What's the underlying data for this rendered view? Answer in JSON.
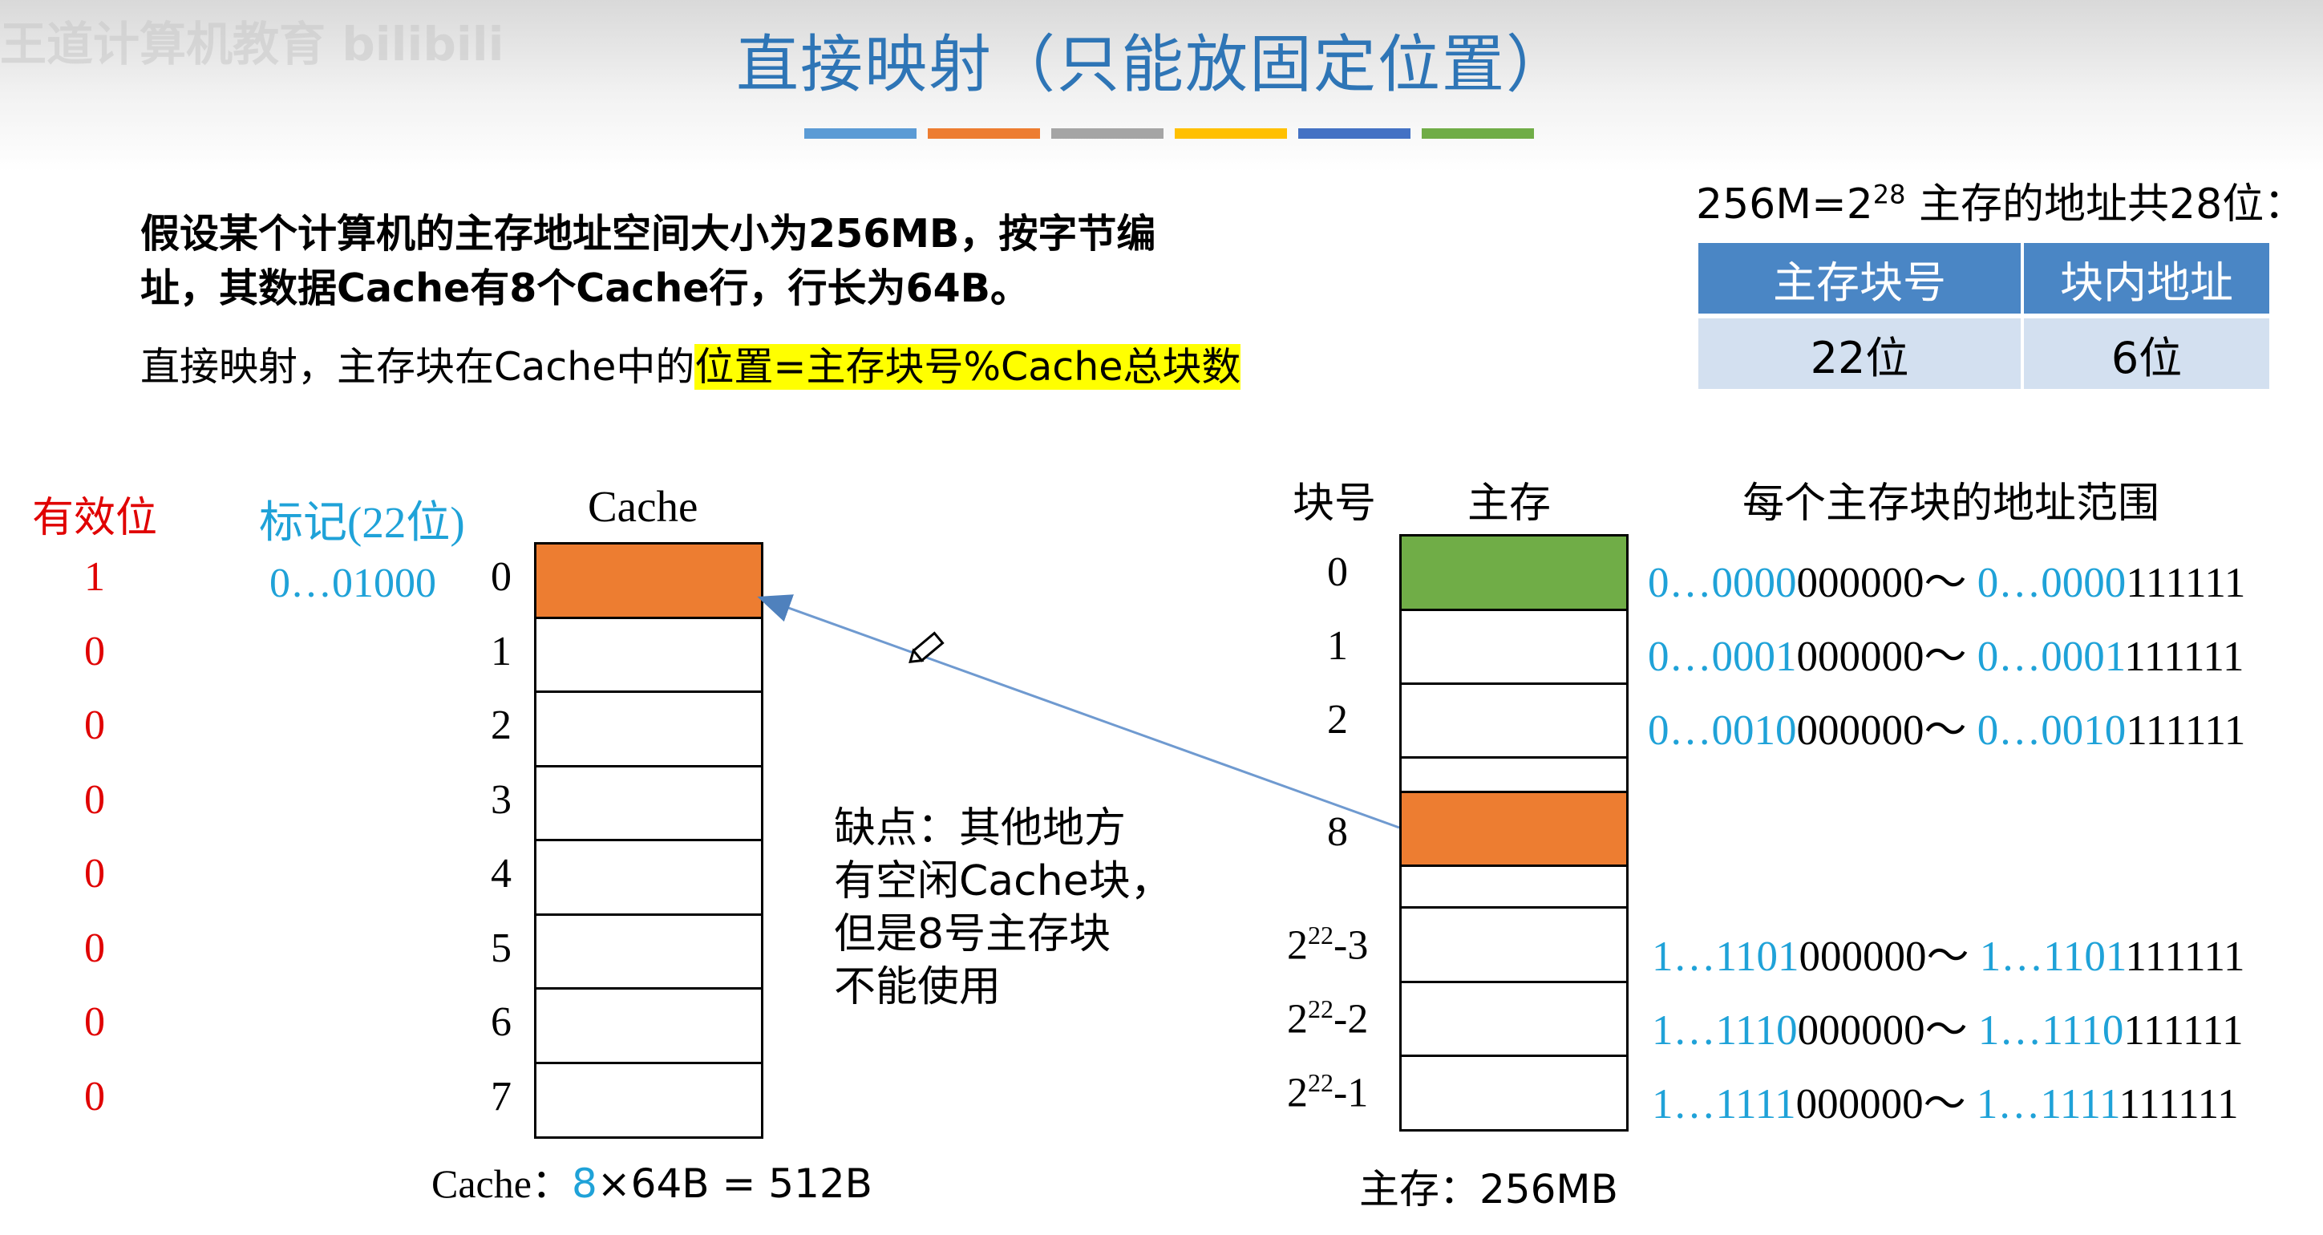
{
  "watermark": "王道计算机教育 bilibili",
  "title": "直接映射（只能放固定位置）",
  "colors": [
    "#5b9bd5",
    "#ed7d31",
    "#a5a5a5",
    "#ffc000",
    "#4472c4",
    "#70ad47"
  ],
  "intro": {
    "line1": "假设某个计算机的主存地址空间大小为256MB，按字节编",
    "line2": "址，其数据Cache有8个Cache行，行长为64B。",
    "line3_plain": "直接映射，主存块在Cache中的",
    "line3_highlight": "位置=主存块号%Cache总块数"
  },
  "address_info": {
    "base": "256M=2",
    "exp": "28",
    "rest": " 主存的地址共28位：",
    "headers": [
      "主存块号",
      "块内地址"
    ],
    "values": [
      "22位",
      "6位"
    ]
  },
  "cache": {
    "valid_header": "有效位",
    "tag_header": "标记(22位)",
    "title": "Cache",
    "rows": [
      {
        "index": "0",
        "valid": "1",
        "tag": "0…01000",
        "filled": true
      },
      {
        "index": "1",
        "valid": "0",
        "tag": "",
        "filled": false
      },
      {
        "index": "2",
        "valid": "0",
        "tag": "",
        "filled": false
      },
      {
        "index": "3",
        "valid": "0",
        "tag": "",
        "filled": false
      },
      {
        "index": "4",
        "valid": "0",
        "tag": "",
        "filled": false
      },
      {
        "index": "5",
        "valid": "0",
        "tag": "",
        "filled": false
      },
      {
        "index": "6",
        "valid": "0",
        "tag": "",
        "filled": false
      },
      {
        "index": "7",
        "valid": "0",
        "tag": "",
        "filled": false
      }
    ],
    "caption_prefix": "Cache：",
    "caption_num": "8",
    "caption_rest": "×64B = 512B"
  },
  "note": {
    "line1": "缺点：其他地方",
    "line2": "有空闲Cache块，",
    "line3": "但是8号主存块",
    "line4": "不能使用"
  },
  "memory": {
    "block_header": "块号",
    "title": "主存",
    "range_header": "每个主存块的地址范围",
    "labels": {
      "b0": "0",
      "b1": "1",
      "b2": "2",
      "b8": "8",
      "bm3_base": "2",
      "bm3_exp": "22",
      "bm3_rest": "-3",
      "bm2_base": "2",
      "bm2_exp": "22",
      "bm2_rest": "-2",
      "bm1_base": "2",
      "bm1_exp": "22",
      "bm1_rest": "-1"
    },
    "ranges": [
      {
        "a_blue": "0…0000",
        "a_black": "000000",
        "sep": "～ ",
        "b_blue": "0…0000",
        "b_black": "111111"
      },
      {
        "a_blue": "0…0001",
        "a_black": "000000",
        "sep": "～ ",
        "b_blue": "0…0001",
        "b_black": "111111"
      },
      {
        "a_blue": "0…0010",
        "a_black": "000000",
        "sep": "～ ",
        "b_blue": "0…0010",
        "b_black": "111111"
      },
      {
        "a_blue": "1…1101",
        "a_black": "000000",
        "sep": "～ ",
        "b_blue": "1…1101",
        "b_black": "111111"
      },
      {
        "a_blue": "1…1110",
        "a_black": "000000",
        "sep": "～ ",
        "b_blue": "1…1110",
        "b_black": "111111"
      },
      {
        "a_blue": "1…1111",
        "a_black": "000000",
        "sep": "～ ",
        "b_blue": "1…1111",
        "b_black": "111111"
      }
    ],
    "caption": "主存：256MB"
  }
}
